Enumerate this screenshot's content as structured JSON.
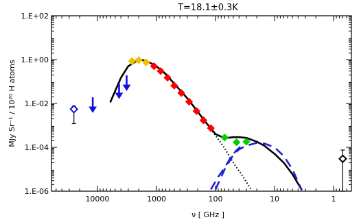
{
  "chart_data": {
    "type": "scatter",
    "title": "T=18.1±0.3K",
    "xlabel": "ν [ GHz ]",
    "ylabel": "MJy Sr⁻¹ / 10²⁰ H atoms",
    "x_scale": "log",
    "y_scale": "log",
    "x_reversed": true,
    "xlim": [
      60000,
      0.5
    ],
    "ylim": [
      1e-06,
      100
    ],
    "x_ticks": [
      {
        "value": 10000,
        "label": "10000"
      },
      {
        "value": 1000,
        "label": "1000"
      },
      {
        "value": 100,
        "label": "100"
      },
      {
        "value": 10,
        "label": "10"
      },
      {
        "value": 1,
        "label": "1"
      }
    ],
    "y_ticks": [
      {
        "value": 100,
        "label": "1.E+02"
      },
      {
        "value": 1,
        "label": "1.E+00"
      },
      {
        "value": 0.01,
        "label": "1.E-02"
      },
      {
        "value": 0.0001,
        "label": "1.E-04"
      },
      {
        "value": 1e-06,
        "label": "1.E-06"
      }
    ],
    "colors": {
      "blue": "#1010e0",
      "yellow": "#f0c000",
      "red": "#ff0000",
      "green": "#00d000",
      "black": "#000000",
      "dashed_blue": "#2020d0"
    },
    "points": [
      {
        "x": 25000,
        "y": 0.0055,
        "err_low": 0.0012,
        "err_high": 0.0075,
        "color": "blue",
        "marker": "open-diamond"
      },
      {
        "x": 0.7,
        "y": 3e-05,
        "err_low": 1e-06,
        "err_high": 7.5e-05,
        "color": "black",
        "marker": "open-diamond"
      },
      {
        "x": 2600,
        "y": 0.85,
        "color": "yellow",
        "marker": "filled-diamond"
      },
      {
        "x": 2000,
        "y": 0.95,
        "color": "yellow",
        "marker": "filled-diamond"
      },
      {
        "x": 1500,
        "y": 0.75,
        "color": "yellow",
        "marker": "filled-diamond"
      },
      {
        "x": 1100,
        "y": 0.5,
        "color": "red",
        "marker": "filled-diamond"
      },
      {
        "x": 850,
        "y": 0.3,
        "color": "red",
        "marker": "filled-diamond"
      },
      {
        "x": 650,
        "y": 0.15,
        "color": "red",
        "marker": "filled-diamond"
      },
      {
        "x": 500,
        "y": 0.065,
        "color": "red",
        "marker": "filled-diamond"
      },
      {
        "x": 380,
        "y": 0.03,
        "color": "red",
        "marker": "filled-diamond"
      },
      {
        "x": 280,
        "y": 0.012,
        "color": "red",
        "marker": "filled-diamond"
      },
      {
        "x": 210,
        "y": 0.0045,
        "color": "red",
        "marker": "filled-diamond"
      },
      {
        "x": 160,
        "y": 0.0017,
        "color": "red",
        "marker": "filled-diamond"
      },
      {
        "x": 120,
        "y": 0.00075,
        "color": "red",
        "marker": "filled-diamond"
      },
      {
        "x": 70,
        "y": 0.00028,
        "color": "green",
        "marker": "filled-diamond"
      },
      {
        "x": 44,
        "y": 0.00017,
        "color": "green",
        "marker": "filled-diamond"
      },
      {
        "x": 30,
        "y": 0.00018,
        "color": "green",
        "marker": "filled-diamond"
      }
    ],
    "upper_limits": [
      {
        "x": 12000,
        "y": 0.007,
        "color": "blue"
      },
      {
        "x": 4300,
        "y": 0.03,
        "color": "blue"
      },
      {
        "x": 3200,
        "y": 0.07,
        "color": "blue"
      }
    ],
    "series": [
      {
        "style": "solid",
        "color": "black",
        "x": [
          6000,
          4000,
          3000,
          2000,
          1500,
          1000,
          700,
          500,
          300,
          200,
          150,
          100,
          70,
          50,
          40,
          30,
          20,
          15,
          10,
          7,
          5,
          3.5
        ],
        "y": [
          0.012,
          0.15,
          0.5,
          1.0,
          0.9,
          0.5,
          0.22,
          0.08,
          0.017,
          0.0042,
          0.0015,
          0.0004,
          0.00026,
          0.00029,
          0.00029,
          0.00027,
          0.00018,
          0.00012,
          5e-05,
          2e-05,
          6e-06,
          1.2e-06
        ]
      },
      {
        "style": "dotted",
        "color": "black",
        "x": [
          150,
          100,
          70,
          50,
          35,
          25
        ],
        "y": [
          0.0015,
          0.00035,
          9e-05,
          2e-05,
          5e-06,
          1.2e-06
        ]
      },
      {
        "style": "dashed",
        "color": "dashed_blue",
        "x": [
          100,
          70,
          50,
          40,
          30,
          20,
          15,
          10,
          7,
          5,
          3.5
        ],
        "y": [
          1.2e-06,
          1e-05,
          4.5e-05,
          8e-05,
          0.00012,
          0.00016,
          0.00015,
          0.0001,
          4e-05,
          1e-05,
          1.2e-06
        ]
      },
      {
        "style": "dashed",
        "color": "dashed_blue",
        "x": [
          120,
          90,
          70,
          55,
          45,
          35,
          28
        ],
        "y": [
          1.2e-06,
          4.5e-06,
          1.2e-05,
          3.5e-05,
          7e-05,
          0.00013,
          0.00019
        ]
      }
    ],
    "grid": false,
    "legend": "none"
  }
}
